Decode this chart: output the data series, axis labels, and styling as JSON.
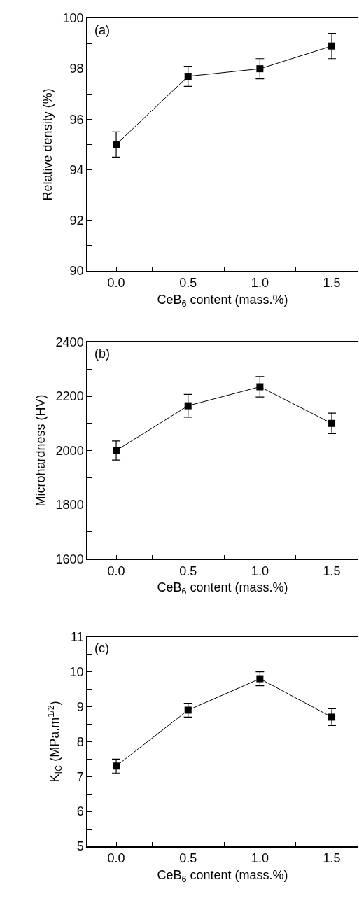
{
  "chart_data": [
    {
      "type": "line",
      "xlabel": "CeB$_{6}$ content (mass.%)",
      "ylabel": "Relative density (%)",
      "annotations": [
        "(a)"
      ],
      "x": [
        0,
        0.5,
        1.0,
        1.5
      ],
      "series": [
        {
          "color": "#000000",
          "values": [
            95.0,
            97.7,
            98.0,
            98.9
          ],
          "errors": [
            0.5,
            0.4,
            0.4,
            0.5
          ]
        }
      ],
      "marker": "square",
      "line_style": "solid",
      "xlim": [
        -0.2,
        1.68
      ],
      "xticks": [
        {
          "value": 0,
          "label": "0.0"
        },
        {
          "value": 0.25,
          "label": null
        },
        {
          "value": 0.5,
          "label": "0.5"
        },
        {
          "value": 0.75,
          "label": null
        },
        {
          "value": 1.0,
          "label": "1.0"
        },
        {
          "value": 1.25,
          "label": null
        },
        {
          "value": 1.5,
          "label": "1.5"
        }
      ],
      "ylim": [
        90,
        100
      ],
      "yticks": [
        90,
        {
          "value": 91,
          "label": null
        },
        92,
        {
          "value": 93,
          "label": null
        },
        94,
        {
          "value": 95,
          "label": null
        },
        96,
        {
          "value": 97,
          "label": null
        },
        98,
        {
          "value": 99,
          "label": null
        },
        100
      ]
    },
    {
      "type": "line",
      "xlabel": "CeB$_{6}$ content (mass.%)",
      "ylabel": "Microhardness (HV)",
      "annotations": [
        "(b)"
      ],
      "x": [
        0,
        0.5,
        1.0,
        1.5
      ],
      "series": [
        {
          "color": "#000000",
          "values": [
            2000,
            2165,
            2235,
            2100
          ],
          "errors": [
            35,
            42,
            38,
            38
          ]
        }
      ],
      "marker": "square",
      "line_style": "solid",
      "xlim": [
        -0.2,
        1.68
      ],
      "xticks": [
        {
          "value": 0,
          "label": "0.0"
        },
        {
          "value": 0.25,
          "label": null
        },
        {
          "value": 0.5,
          "label": "0.5"
        },
        {
          "value": 0.75,
          "label": null
        },
        {
          "value": 1.0,
          "label": "1.0"
        },
        {
          "value": 1.25,
          "label": null
        },
        {
          "value": 1.5,
          "label": "1.5"
        }
      ],
      "ylim": [
        1600,
        2400
      ],
      "yticks": [
        1600,
        {
          "value": 1700,
          "label": null
        },
        1800,
        {
          "value": 1900,
          "label": null
        },
        2000,
        {
          "value": 2100,
          "label": null
        },
        2200,
        {
          "value": 2300,
          "label": null
        },
        2400
      ]
    },
    {
      "type": "line",
      "xlabel": "CeB$_{6}$ content (mass.%)",
      "ylabel": "K$_{IC}$ (MPa.m$^{1/2}$)",
      "annotations": [
        "(c)"
      ],
      "x": [
        0,
        0.5,
        1.0,
        1.5
      ],
      "series": [
        {
          "color": "#000000",
          "values": [
            7.3,
            8.9,
            9.8,
            8.7
          ],
          "errors": [
            0.2,
            0.2,
            0.2,
            0.24
          ]
        }
      ],
      "marker": "square",
      "line_style": "solid",
      "xlim": [
        -0.2,
        1.68
      ],
      "xticks": [
        {
          "value": 0,
          "label": "0.0"
        },
        {
          "value": 0.25,
          "label": null
        },
        {
          "value": 0.5,
          "label": "0.5"
        },
        {
          "value": 0.75,
          "label": null
        },
        {
          "value": 1.0,
          "label": "1.0"
        },
        {
          "value": 1.25,
          "label": null
        },
        {
          "value": 1.5,
          "label": "1.5"
        }
      ],
      "ylim": [
        5,
        11
      ],
      "yticks": [
        5,
        {
          "value": 5.5,
          "label": null
        },
        6,
        {
          "value": 6.5,
          "label": null
        },
        7,
        {
          "value": 7.5,
          "label": null
        },
        8,
        {
          "value": 8.5,
          "label": null
        },
        9,
        {
          "value": 9.5,
          "label": null
        },
        10,
        {
          "value": 10.5,
          "label": null
        },
        11
      ]
    }
  ]
}
